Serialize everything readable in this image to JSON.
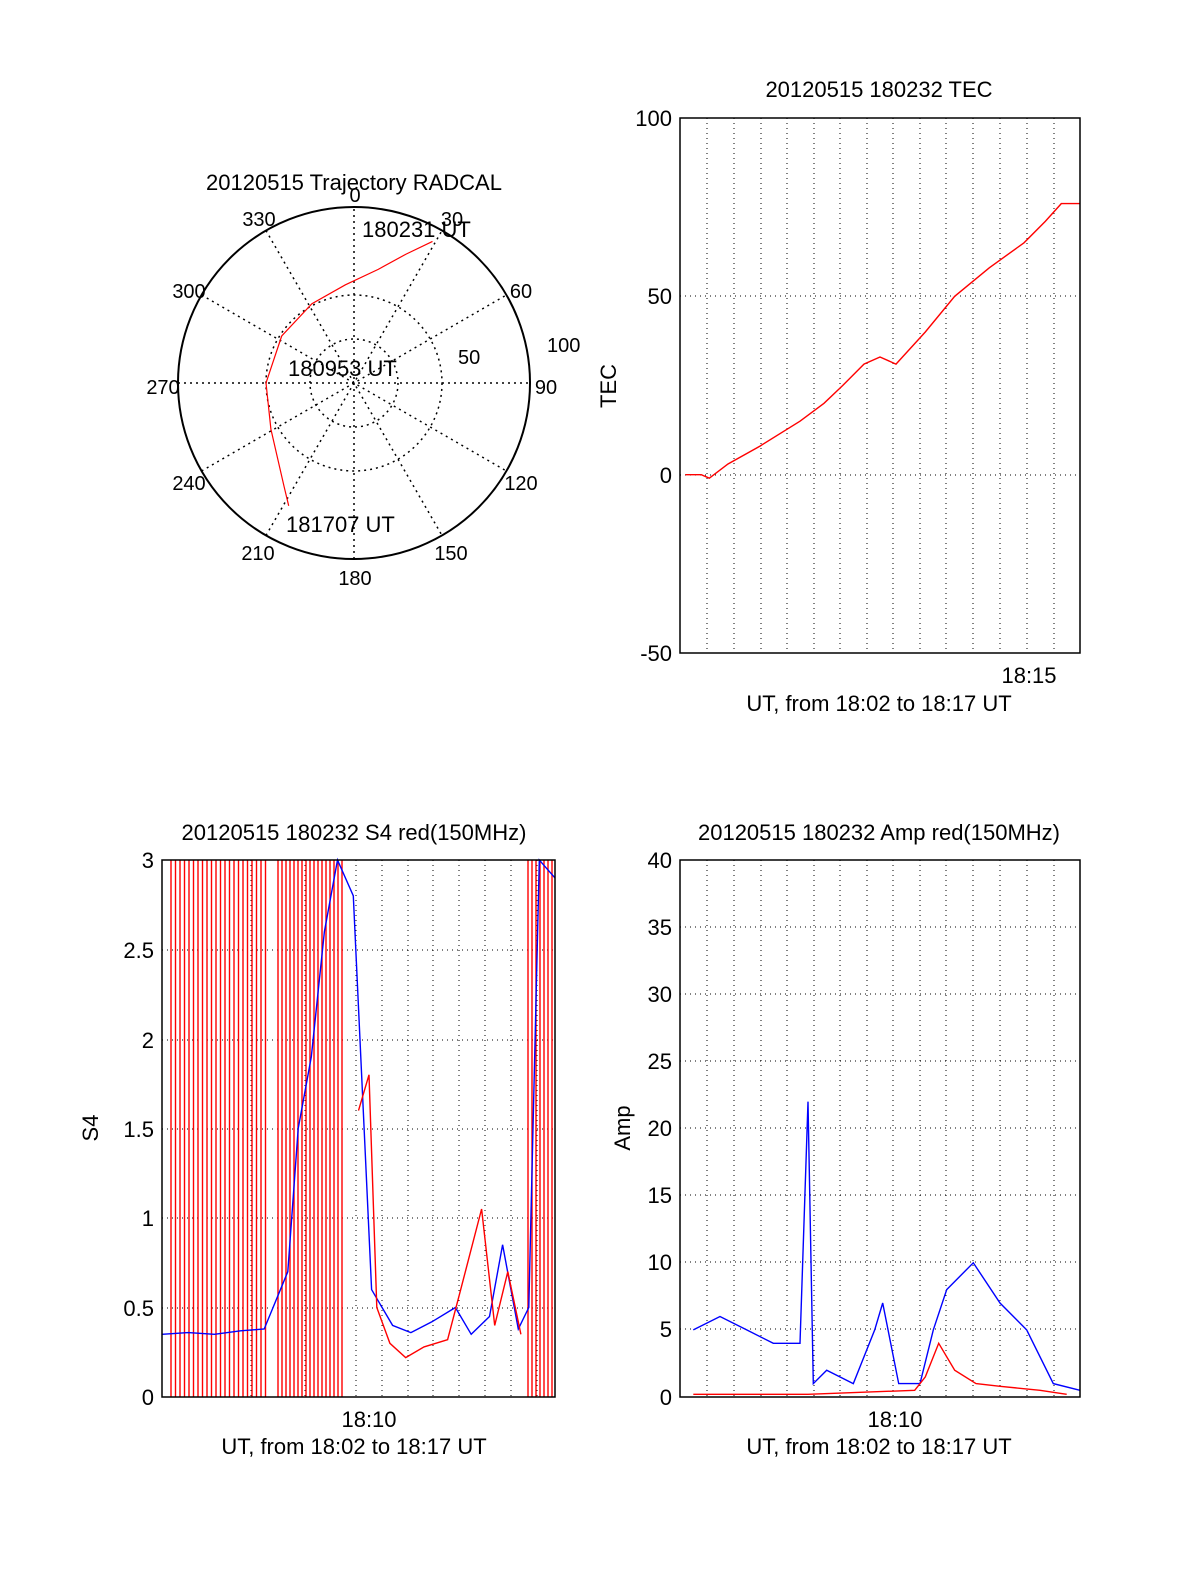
{
  "chart_data": [
    {
      "id": "polar",
      "type": "polar-trajectory",
      "title": "20120515 Trajectory RADCAL",
      "azimuth_labels": [
        "0",
        "30",
        "60",
        "90",
        "120",
        "150",
        "180",
        "210",
        "240",
        "270",
        "300",
        "330"
      ],
      "radial_labels": [
        "50",
        "100"
      ],
      "radial_range": [
        0,
        100
      ],
      "grid": "dotted",
      "series": [
        {
          "color": "#ff0000",
          "points": [
            [
              29,
              92
            ],
            [
              22,
              79
            ],
            [
              12,
              66
            ],
            [
              -5,
              56
            ],
            [
              -28,
              51
            ],
            [
              -57,
              49
            ],
            [
              -90,
              50
            ],
            [
              -119,
              54
            ],
            [
              -146,
              71
            ],
            [
              -152,
              79
            ]
          ]
        }
      ],
      "annotations": [
        {
          "text": "180231 UT",
          "az": 29,
          "r": 92
        },
        {
          "text": "180953 UT",
          "az": 0,
          "r": 0
        },
        {
          "text": "181707 UT",
          "az": -152,
          "r": 79
        }
      ]
    },
    {
      "id": "tec",
      "type": "line",
      "title": "20120515 180232 TEC",
      "ylabel": "TEC",
      "xlabel": "UT, from 18:02 to 18:17 UT",
      "xlim": [
        0,
        15
      ],
      "ylim": [
        -50,
        100
      ],
      "yticks": [
        "100",
        "50",
        "0",
        "-50"
      ],
      "xtick_labels": [
        {
          "x": 13,
          "label": "18:15"
        }
      ],
      "grid": "dotted",
      "series": [
        {
          "color": "#ff0000",
          "x": [
            0.2,
            0.8,
            1.1,
            1.8,
            3.0,
            4.5,
            5.4,
            6.1,
            6.9,
            7.5,
            8.1,
            9.2,
            10.3,
            11.6,
            12.9,
            13.7,
            14.3,
            15.0
          ],
          "y": [
            0,
            0,
            -1,
            3,
            8,
            15,
            20,
            25,
            31,
            33,
            31,
            40,
            50,
            58,
            65,
            71,
            76,
            76
          ]
        }
      ]
    },
    {
      "id": "s4",
      "type": "line",
      "title": "20120515 180232 S4 red(150MHz)",
      "ylabel": "S4",
      "xlabel": "UT, from 18:02 to 18:17 UT",
      "xlim": [
        0,
        15
      ],
      "ylim": [
        0,
        3
      ],
      "yticks": [
        "3",
        "2.5",
        "2",
        "1.5",
        "1",
        "0.5",
        "0"
      ],
      "xtick_labels": [
        {
          "x": 8,
          "label": "18:10"
        }
      ],
      "grid": "dotted",
      "series": [
        {
          "color": "#0000ff",
          "x": [
            0,
            1,
            2,
            3,
            3.9,
            4.8,
            5.2,
            5.7,
            6.2,
            6.7,
            7.3,
            8.0,
            8.8,
            9.5,
            10.3,
            11.2,
            11.8,
            12.5,
            13.0,
            13.6,
            14.0,
            14.4,
            15.0
          ],
          "y": [
            0.35,
            0.36,
            0.35,
            0.37,
            0.38,
            0.7,
            1.5,
            1.9,
            2.6,
            3.0,
            2.8,
            0.6,
            0.4,
            0.36,
            0.42,
            0.5,
            0.35,
            0.45,
            0.85,
            0.38,
            0.5,
            3.0,
            2.9
          ]
        },
        {
          "color": "#ff0000",
          "x": [
            7.5,
            7.9,
            8.2,
            8.7,
            9.3,
            10.0,
            10.9,
            11.4,
            12.2,
            12.7,
            13.2,
            13.7
          ],
          "y": [
            1.6,
            1.8,
            0.5,
            0.3,
            0.22,
            0.28,
            0.32,
            0.6,
            1.05,
            0.4,
            0.7,
            0.35
          ]
        }
      ]
    },
    {
      "id": "amp",
      "type": "line",
      "title": "20120515 180232 Amp red(150MHz)",
      "ylabel": "Amp",
      "xlabel": "UT, from 18:02 to 18:17 UT",
      "xlim": [
        0,
        15
      ],
      "ylim": [
        0,
        40
      ],
      "yticks": [
        "40",
        "35",
        "30",
        "25",
        "20",
        "15",
        "10",
        "5",
        "0"
      ],
      "xtick_labels": [
        {
          "x": 8,
          "label": "18:10"
        }
      ],
      "grid": "dotted",
      "series": [
        {
          "color": "#0000ff",
          "x": [
            0.5,
            1.5,
            2.5,
            3.5,
            4.5,
            4.8,
            5.0,
            5.5,
            6.5,
            7.3,
            7.6,
            8.2,
            9.0,
            9.5,
            10.0,
            11.0,
            12.0,
            13.0,
            14.0,
            15.0
          ],
          "y": [
            5,
            6,
            5,
            4,
            4,
            22,
            1,
            2,
            1,
            5,
            7,
            1,
            1,
            5,
            8,
            10,
            7,
            5,
            1,
            0.5
          ]
        },
        {
          "color": "#ff0000",
          "x": [
            0.5,
            4.8,
            8.8,
            9.2,
            9.7,
            10.3,
            11.1,
            12.0,
            13.5,
            14.5
          ],
          "y": [
            0.2,
            0.2,
            0.5,
            1.5,
            4,
            2,
            1,
            0.8,
            0.5,
            0.2
          ]
        }
      ]
    }
  ]
}
